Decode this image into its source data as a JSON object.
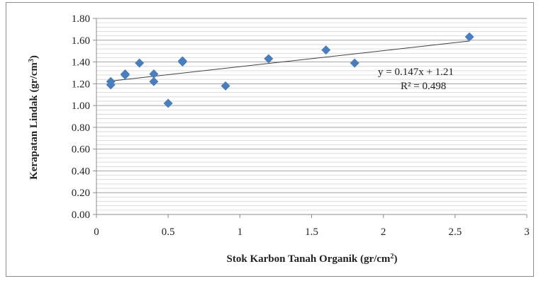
{
  "chart_data": {
    "type": "scatter",
    "title": "",
    "xlabel": "Stok Karbon Tanah Organik (gr/cm",
    "xlabel_sup": "2",
    "xlabel_end": ")",
    "ylabel": "Kerapatan Lindak (gr/cm",
    "ylabel_sup": "3",
    "ylabel_end": ")",
    "xlim": [
      0,
      3
    ],
    "ylim": [
      0,
      1.8
    ],
    "xticks": [
      "0",
      "0.5",
      "1",
      "1.5",
      "2",
      "2.5",
      "3"
    ],
    "yticks": [
      "0.00",
      "0.20",
      "0.40",
      "0.60",
      "0.80",
      "1.00",
      "1.20",
      "1.40",
      "1.60",
      "1.80"
    ],
    "grid": true,
    "legend": "none",
    "marker_color": "#4a7ebb",
    "trendline": {
      "slope": 0.147,
      "intercept": 1.21,
      "x_range": [
        0.1,
        2.6
      ]
    },
    "equation": "y = 0.147x + 1.21",
    "r2_label": "R² = 0.498",
    "points": [
      {
        "x": 0.1,
        "y": 1.22
      },
      {
        "x": 0.1,
        "y": 1.19
      },
      {
        "x": 0.2,
        "y": 1.29
      },
      {
        "x": 0.2,
        "y": 1.28
      },
      {
        "x": 0.3,
        "y": 1.39
      },
      {
        "x": 0.4,
        "y": 1.29
      },
      {
        "x": 0.4,
        "y": 1.22
      },
      {
        "x": 0.5,
        "y": 1.02
      },
      {
        "x": 0.6,
        "y": 1.41
      },
      {
        "x": 0.6,
        "y": 1.4
      },
      {
        "x": 0.9,
        "y": 1.18
      },
      {
        "x": 1.2,
        "y": 1.43
      },
      {
        "x": 1.6,
        "y": 1.51
      },
      {
        "x": 1.8,
        "y": 1.39
      },
      {
        "x": 2.6,
        "y": 1.63
      }
    ]
  }
}
